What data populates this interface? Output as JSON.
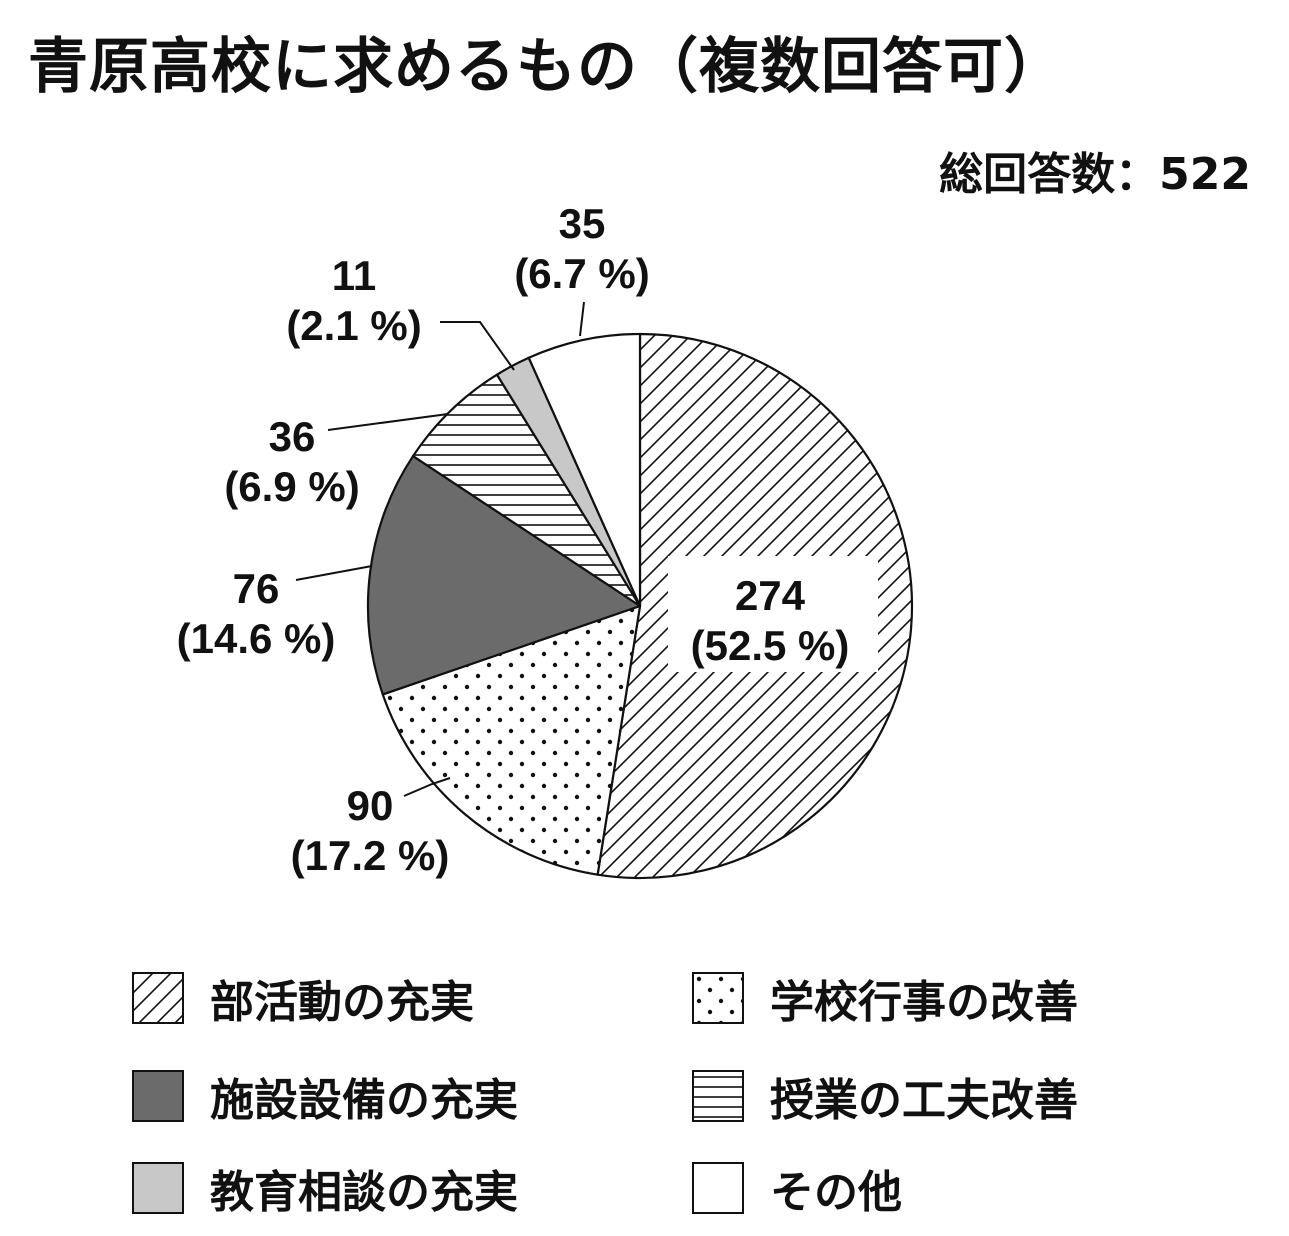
{
  "title": "青原高校に求めるもの（複数回答可）",
  "total_label": "総回答数：522",
  "chart_data": {
    "type": "pie",
    "title": "青原高校に求めるもの（複数回答可）",
    "total": 522,
    "slices": [
      {
        "name": "部活動の充実",
        "value": 274,
        "percent": 52.5,
        "value_label": "274",
        "percent_label": "(52.5 %)",
        "pattern": "diagonal"
      },
      {
        "name": "学校行事の改善",
        "value": 90,
        "percent": 17.2,
        "value_label": "90",
        "percent_label": "(17.2 %)",
        "pattern": "dots"
      },
      {
        "name": "施設設備の充実",
        "value": 76,
        "percent": 14.6,
        "value_label": "76",
        "percent_label": "(14.6 %)",
        "pattern": "solid-dark",
        "color": "#6b6b6b"
      },
      {
        "name": "授業の工夫改善",
        "value": 36,
        "percent": 6.9,
        "value_label": "36",
        "percent_label": "(6.9 %)",
        "pattern": "horizontal"
      },
      {
        "name": "教育相談の充実",
        "value": 11,
        "percent": 2.1,
        "value_label": "11",
        "percent_label": "(2.1 %)",
        "pattern": "solid-light",
        "color": "#c8c8c8"
      },
      {
        "name": "その他",
        "value": 35,
        "percent": 6.7,
        "value_label": "35",
        "percent_label": "(6.7 %)",
        "pattern": "white",
        "color": "#ffffff"
      }
    ],
    "direction": "clockwise from top",
    "legend_position": "bottom"
  },
  "legend": [
    {
      "label": "部活動の充実",
      "pattern": "diagonal"
    },
    {
      "label": "学校行事の改善",
      "pattern": "dots"
    },
    {
      "label": "施設設備の充実",
      "pattern": "solid-dark"
    },
    {
      "label": "授業の工夫改善",
      "pattern": "horizontal"
    },
    {
      "label": "教育相談の充実",
      "pattern": "solid-light"
    },
    {
      "label": "その他",
      "pattern": "white"
    }
  ]
}
